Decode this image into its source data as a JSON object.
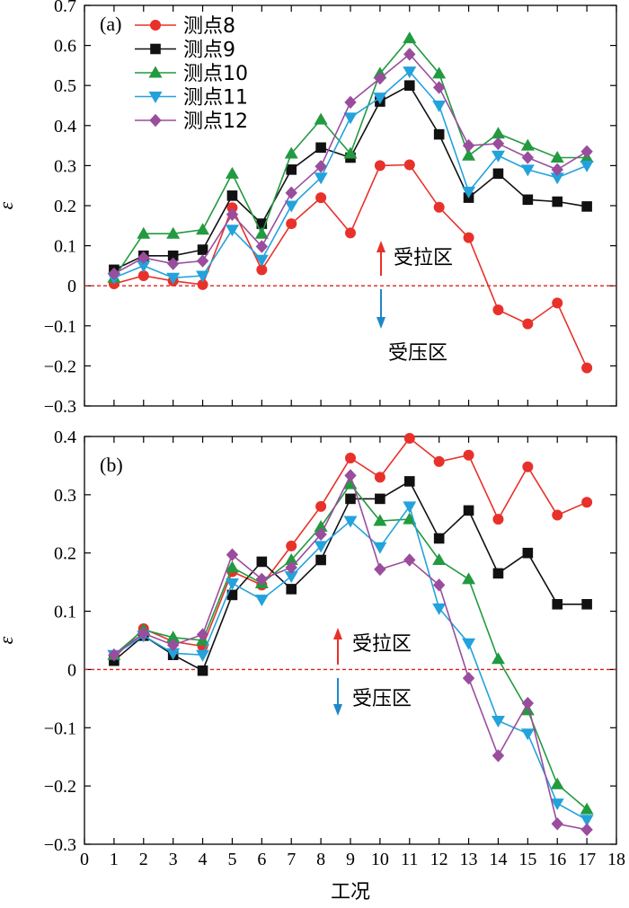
{
  "chart_data": [
    {
      "type": "line",
      "panel_label": "(a)",
      "xlabel": "",
      "ylabel": "ε",
      "ylim": [
        -0.3,
        0.7
      ],
      "yticks": [
        "-0.3",
        "-0.2",
        "-0.1",
        "0",
        "0.1",
        "0.2",
        "0.3",
        "0.4",
        "0.5",
        "0.6",
        "0.7"
      ],
      "xlim": [
        0,
        18
      ],
      "x": [
        1,
        2,
        3,
        4,
        5,
        6,
        7,
        8,
        9,
        10,
        11,
        12,
        13,
        14,
        15,
        16,
        17
      ],
      "legend_position": "top-left",
      "grid": false,
      "reference_line": 0,
      "annotations": {
        "tension": "受拉区",
        "compression": "受压区"
      },
      "series": [
        {
          "name": "测点8",
          "color": "#e8312a",
          "marker": "circle",
          "values": [
            0.005,
            0.025,
            0.012,
            0.003,
            0.195,
            0.04,
            0.155,
            0.22,
            0.132,
            0.3,
            0.302,
            0.196,
            0.12,
            -0.06,
            -0.095,
            -0.043,
            -0.205
          ]
        },
        {
          "name": "测点9",
          "color": "#111111",
          "marker": "square",
          "values": [
            0.04,
            0.075,
            0.075,
            0.09,
            0.225,
            0.155,
            0.29,
            0.345,
            0.32,
            0.46,
            0.5,
            0.378,
            0.22,
            0.28,
            0.215,
            0.21,
            0.198
          ]
        },
        {
          "name": "测点10",
          "color": "#229a3f",
          "marker": "triangle-up",
          "values": [
            0.02,
            0.13,
            0.13,
            0.14,
            0.28,
            0.13,
            0.33,
            0.415,
            0.33,
            0.53,
            0.618,
            0.53,
            0.325,
            0.38,
            0.35,
            0.32,
            0.32
          ]
        },
        {
          "name": "测点11",
          "color": "#23a2dc",
          "marker": "triangle-down",
          "values": [
            0.02,
            0.05,
            0.02,
            0.025,
            0.14,
            0.065,
            0.2,
            0.27,
            0.42,
            0.47,
            0.535,
            0.45,
            0.235,
            0.325,
            0.29,
            0.27,
            0.3
          ]
        },
        {
          "name": "测点12",
          "color": "#9a4d9d",
          "marker": "diamond",
          "values": [
            0.03,
            0.07,
            0.055,
            0.062,
            0.178,
            0.098,
            0.232,
            0.298,
            0.458,
            0.518,
            0.578,
            0.495,
            0.35,
            0.355,
            0.32,
            0.29,
            0.335
          ]
        }
      ]
    },
    {
      "type": "line",
      "panel_label": "(b)",
      "xlabel": "工况",
      "ylabel": "ε",
      "ylim": [
        -0.3,
        0.4
      ],
      "yticks": [
        "-0.3",
        "-0.2",
        "-0.1",
        "0",
        "0.1",
        "0.2",
        "0.3",
        "0.4"
      ],
      "xlim": [
        0,
        18
      ],
      "xticks": [
        "0",
        "1",
        "2",
        "3",
        "4",
        "5",
        "6",
        "7",
        "8",
        "9",
        "10",
        "11",
        "12",
        "13",
        "14",
        "15",
        "16",
        "17",
        "18"
      ],
      "x": [
        1,
        2,
        3,
        4,
        5,
        6,
        7,
        8,
        9,
        10,
        11,
        12,
        13,
        14,
        15,
        16,
        17
      ],
      "grid": false,
      "reference_line": 0,
      "annotations": {
        "tension": "受拉区",
        "compression": "受压区"
      },
      "series": [
        {
          "name": "测点8",
          "color": "#e8312a",
          "marker": "circle",
          "values": [
            0.02,
            0.07,
            0.048,
            0.04,
            0.168,
            0.145,
            0.212,
            0.28,
            0.363,
            0.33,
            0.397,
            0.357,
            0.368,
            0.258,
            0.348,
            0.265,
            0.287
          ]
        },
        {
          "name": "测点9",
          "color": "#111111",
          "marker": "square",
          "values": [
            0.015,
            0.058,
            0.025,
            -0.002,
            0.128,
            0.185,
            0.138,
            0.188,
            0.293,
            0.293,
            0.323,
            0.225,
            0.273,
            0.165,
            0.2,
            0.112,
            0.112
          ]
        },
        {
          "name": "测点10",
          "color": "#229a3f",
          "marker": "triangle-up",
          "values": [
            0.025,
            0.068,
            0.055,
            0.05,
            0.175,
            0.148,
            0.188,
            0.245,
            0.318,
            0.255,
            0.258,
            0.188,
            0.155,
            0.018,
            -0.07,
            -0.197,
            -0.24
          ]
        },
        {
          "name": "测点11",
          "color": "#23a2dc",
          "marker": "triangle-down",
          "values": [
            0.025,
            0.058,
            0.028,
            0.025,
            0.148,
            0.12,
            0.16,
            0.212,
            0.255,
            0.21,
            0.28,
            0.105,
            0.045,
            -0.088,
            -0.11,
            -0.23,
            -0.258
          ]
        },
        {
          "name": "测点12",
          "color": "#9a4d9d",
          "marker": "diamond",
          "values": [
            0.025,
            0.062,
            0.042,
            0.06,
            0.197,
            0.155,
            0.175,
            0.232,
            0.333,
            0.172,
            0.188,
            0.145,
            -0.015,
            -0.148,
            -0.058,
            -0.265,
            -0.275
          ]
        }
      ]
    }
  ]
}
